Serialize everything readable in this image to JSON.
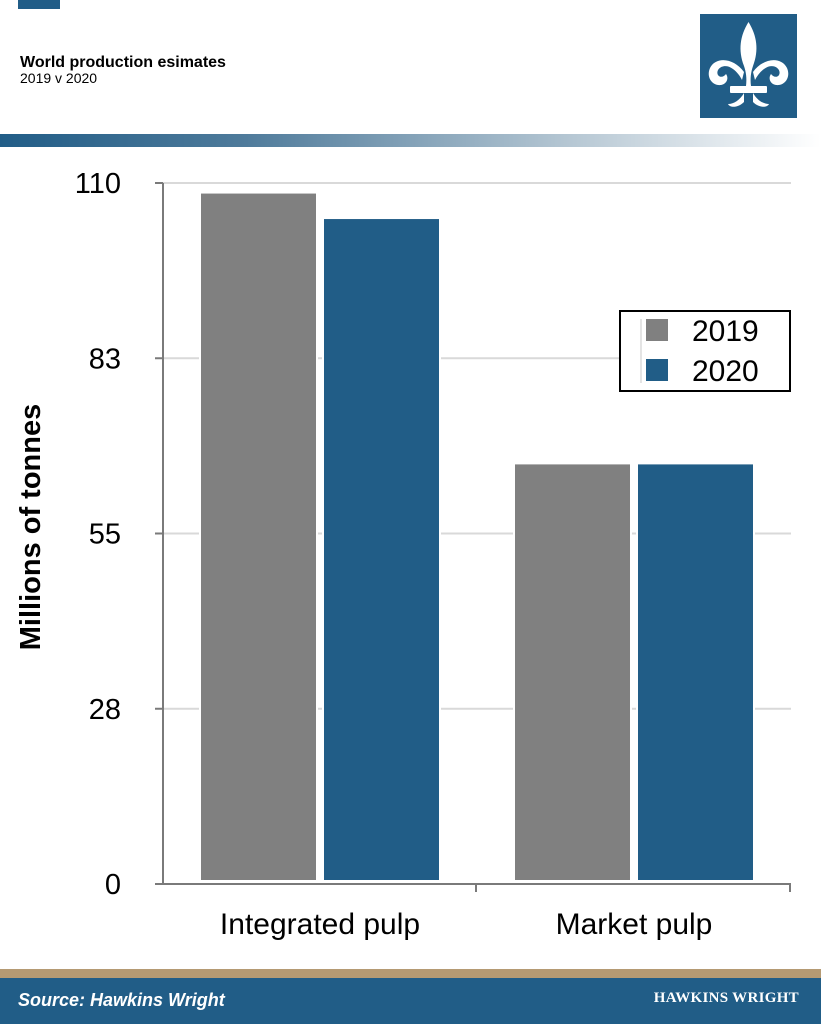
{
  "header": {
    "title": "World production esimates",
    "subtitle": "2019 v 2020",
    "logo_icon": "fleur-de-lis-icon"
  },
  "colors": {
    "brand_blue": "#215d87",
    "series_2019": "#808080",
    "series_2020": "#215d87",
    "tan": "#b59a73"
  },
  "chart_data": {
    "type": "bar",
    "categories": [
      "Integrated pulp",
      "Market pulp"
    ],
    "series": [
      {
        "name": "2019",
        "values": [
          108.5,
          66.0
        ]
      },
      {
        "name": "2020",
        "values": [
          104.5,
          66.0
        ]
      }
    ],
    "xlabel": "",
    "ylabel": "Millions of tonnes",
    "ylim": [
      0,
      110
    ],
    "yticks": [
      "0",
      "28",
      "55",
      "83",
      "110"
    ],
    "ytick_values": [
      0,
      27.5,
      55,
      82.5,
      110
    ],
    "grid": true,
    "legend_position": "right"
  },
  "footer": {
    "source": "Source:  Hawkins Wright",
    "brand": "HAWKINS WRIGHT"
  }
}
